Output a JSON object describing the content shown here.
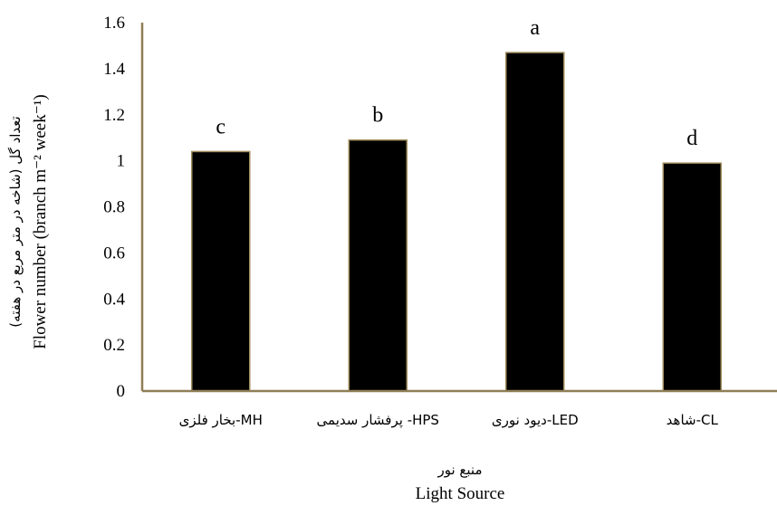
{
  "chart_data": {
    "type": "bar",
    "categories": [
      "بخار فلزی-MH",
      "پرفشار سدیمی -HPS",
      "دیود نوری-LED",
      "شاهد-CL"
    ],
    "values": [
      1.04,
      1.09,
      1.47,
      0.99
    ],
    "significance_letters": [
      "c",
      "b",
      "a",
      "d"
    ],
    "ylim": [
      0,
      1.6
    ],
    "yticks": [
      "0",
      "0.2",
      "0.4",
      "0.6",
      "0.8",
      "1",
      "1.2",
      "1.4",
      "1.6"
    ],
    "ylabel_fa": "تعداد گل (شاخه در متر مربع در هفته)",
    "ylabel_en": "Flower number (branch m⁻² week⁻¹)",
    "xlabel_fa": "منبع نور",
    "xlabel_en": "Light Source",
    "grid": false,
    "legend": "none",
    "bar_color": "#000000",
    "axis_color": "#8f7f57"
  }
}
